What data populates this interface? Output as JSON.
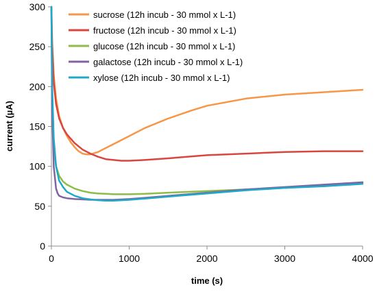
{
  "chart_data": {
    "type": "line",
    "xlabel": "time (s)",
    "ylabel": "current (µA)",
    "xlim": [
      0,
      4000
    ],
    "ylim": [
      0,
      300
    ],
    "xticks": [
      0,
      1000,
      2000,
      3000,
      4000
    ],
    "yticks": [
      0,
      50,
      100,
      150,
      200,
      250,
      300
    ],
    "grid": false,
    "legend_position": "top-right",
    "series": [
      {
        "name": "sucrose (12h incub - 30 mmol  x L-1)",
        "color": "#f79646",
        "x": [
          0,
          10,
          30,
          60,
          100,
          150,
          200,
          250,
          300,
          350,
          400,
          450,
          500,
          600,
          700,
          800,
          1000,
          1200,
          1500,
          1800,
          2000,
          2500,
          3000,
          3500,
          4000
        ],
        "y": [
          300,
          258,
          215,
          185,
          163,
          148,
          138,
          130,
          124,
          119,
          116,
          115,
          115,
          118,
          123,
          128,
          138,
          148,
          160,
          170,
          176,
          185,
          190,
          193,
          196
        ]
      },
      {
        "name": "fructose (12h incub  - 30 mmol  x L-1)",
        "color": "#d9463f",
        "x": [
          0,
          10,
          30,
          60,
          100,
          150,
          200,
          300,
          400,
          500,
          600,
          700,
          800,
          900,
          1000,
          1200,
          1500,
          2000,
          2500,
          3000,
          3500,
          4000
        ],
        "y": [
          300,
          250,
          205,
          178,
          160,
          148,
          140,
          129,
          121,
          116,
          112,
          109,
          108,
          107,
          107,
          108,
          110,
          114,
          116,
          118,
          119,
          119
        ]
      },
      {
        "name": "glucose (12h incub - 30 mmol  x L-1)",
        "color": "#8cbd46",
        "x": [
          0,
          10,
          30,
          60,
          100,
          150,
          200,
          300,
          400,
          500,
          600,
          700,
          800,
          900,
          1000,
          1200,
          1500,
          2000,
          2500,
          3000,
          3500,
          4000
        ],
        "y": [
          300,
          190,
          128,
          100,
          88,
          81,
          77,
          72,
          69,
          67,
          66,
          65.5,
          65,
          65,
          65,
          65.5,
          67,
          69,
          71,
          73,
          76,
          79
        ]
      },
      {
        "name": "galactose (12h incub  - 30 mmol  x L-1)",
        "color": "#8064a2",
        "x": [
          0,
          10,
          30,
          60,
          80,
          100,
          150,
          200,
          300,
          400,
          500,
          600,
          700,
          800,
          1000,
          1200,
          1500,
          2000,
          2500,
          3000,
          3500,
          4000
        ],
        "y": [
          300,
          170,
          100,
          72,
          66,
          63,
          61,
          60,
          59,
          58.5,
          58,
          58,
          58,
          58,
          59,
          60.5,
          63,
          67,
          71,
          74,
          77,
          80
        ]
      },
      {
        "name": "xylose (12h incub - 30 mmol  x L-1)",
        "color": "#1fa9c9",
        "x": [
          0,
          10,
          30,
          60,
          100,
          150,
          200,
          300,
          400,
          500,
          600,
          700,
          800,
          1000,
          1200,
          1500,
          2000,
          2500,
          3000,
          3500,
          4000
        ],
        "y": [
          300,
          200,
          135,
          100,
          82,
          74,
          68,
          63,
          60,
          58.5,
          57.5,
          57,
          57,
          58,
          59.5,
          62,
          66,
          70,
          73,
          75,
          78
        ]
      }
    ]
  }
}
